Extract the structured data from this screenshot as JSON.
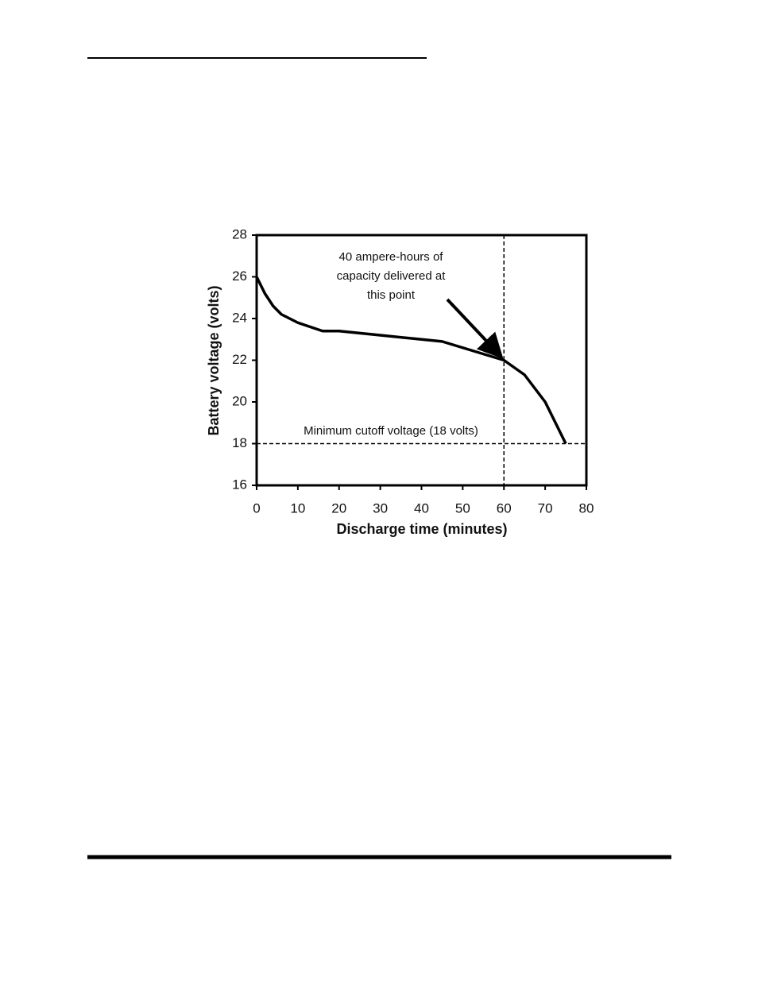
{
  "chart_data": {
    "type": "line",
    "x": [
      0,
      2,
      4,
      6,
      10,
      16,
      20,
      30,
      40,
      45,
      50,
      55,
      60,
      65,
      70,
      75
    ],
    "values": [
      26,
      25.2,
      24.6,
      24.2,
      23.8,
      23.4,
      23.4,
      23.2,
      23.0,
      22.9,
      22.6,
      22.3,
      22.0,
      21.3,
      20.0,
      18.0
    ],
    "color": "#000000",
    "xlabel": "Discharge time (minutes)",
    "ylabel": "Battery voltage (volts)",
    "xlim": [
      0,
      80
    ],
    "xticks": [
      0,
      10,
      20,
      30,
      40,
      50,
      60,
      70,
      80
    ],
    "ylim": [
      16,
      28
    ],
    "yticks": [
      16,
      18,
      20,
      22,
      24,
      26,
      28
    ],
    "hline": 18,
    "vline": 60,
    "hline_label": "Minimum cutoff voltage (18 volts)",
    "annotation": [
      "40 ampere-hours of",
      "capacity delivered at",
      "this point"
    ]
  }
}
